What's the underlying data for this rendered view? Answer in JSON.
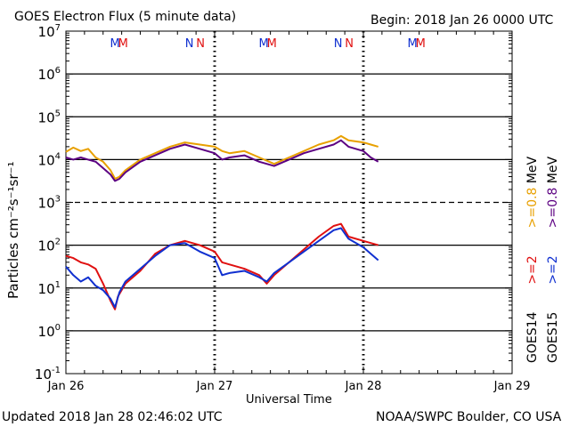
{
  "header": {
    "title": "GOES Electron Flux (5 minute data)",
    "begin": "Begin: 2018 Jan 26 0000 UTC"
  },
  "footer": {
    "updated": "Updated 2018 Jan 28 02:46:02 UTC",
    "credit": "NOAA/SWPC Boulder, CO USA"
  },
  "colors": {
    "goes14_high": "#e8a000",
    "goes15_high": "#5c0082",
    "goes14_low": "#e01010",
    "goes15_low": "#1030d0",
    "marker_M_blue": "#1030d0",
    "marker_M_red": "#e01010"
  },
  "chart_data": {
    "type": "line",
    "title": "GOES Electron Flux (5 minute data)",
    "xlabel": "Universal Time",
    "ylabel": "Particles cm⁻²s⁻¹sr⁻¹",
    "x_unit": "days since 2018 Jan 26 0000 UTC",
    "xlim": [
      0,
      3
    ],
    "ylim_log10": [
      -1,
      7
    ],
    "x_ticks": [
      {
        "x": 0,
        "label": "Jan 26"
      },
      {
        "x": 1,
        "label": "Jan 27"
      },
      {
        "x": 2,
        "label": "Jan 28"
      },
      {
        "x": 3,
        "label": "Jan 29"
      }
    ],
    "y_ticks": [
      {
        "base": "10",
        "exp": "7"
      },
      {
        "base": "10",
        "exp": "6"
      },
      {
        "base": "10",
        "exp": "5"
      },
      {
        "base": "10",
        "exp": "4"
      },
      {
        "base": "10",
        "exp": "3"
      },
      {
        "base": "10",
        "exp": "2"
      },
      {
        "base": "10",
        "exp": "1"
      },
      {
        "base": "10",
        "exp": "0"
      },
      {
        "base": "10",
        "exp": "-1"
      }
    ],
    "threshold_log10": 3,
    "gridlines_log10": [
      6,
      5,
      4,
      2,
      1,
      0
    ],
    "dotted_day_lines": [
      1,
      2
    ],
    "markers": [
      {
        "x": 0.33,
        "letter": "M",
        "color": "#1030d0"
      },
      {
        "x": 0.385,
        "letter": "M",
        "color": "#e01010"
      },
      {
        "x": 0.83,
        "letter": "N",
        "color": "#1030d0"
      },
      {
        "x": 0.905,
        "letter": "N",
        "color": "#e01010"
      },
      {
        "x": 1.33,
        "letter": "M",
        "color": "#1030d0"
      },
      {
        "x": 1.385,
        "letter": "M",
        "color": "#e01010"
      },
      {
        "x": 1.83,
        "letter": "N",
        "color": "#1030d0"
      },
      {
        "x": 1.905,
        "letter": "N",
        "color": "#e01010"
      },
      {
        "x": 2.33,
        "letter": "M",
        "color": "#1030d0"
      },
      {
        "x": 2.385,
        "letter": "M",
        "color": "#e01010"
      }
    ],
    "legend": {
      "groups": [
        {
          "sat": "GOES14",
          "low": "&gt;=2",
          "high": "&gt;=0.8 MeV"
        },
        {
          "sat": "GOES15",
          "low": "&gt;=2",
          "high": "&gt;=0.8 MeV"
        }
      ],
      "entries": [
        {
          "sat": "GOES14",
          "low_label": ">=2",
          "high_label": ">=0.8",
          "unit": "MeV"
        },
        {
          "sat": "GOES15",
          "low_label": ">=2",
          "high_label": ">=0.8",
          "unit": "MeV"
        }
      ]
    },
    "series": [
      {
        "name": "GOES14 >=0.8 MeV",
        "color": "#e8a000",
        "points": [
          [
            0,
            4.18
          ],
          [
            0.05,
            4.28
          ],
          [
            0.1,
            4.2
          ],
          [
            0.15,
            4.25
          ],
          [
            0.2,
            4.05
          ],
          [
            0.25,
            3.95
          ],
          [
            0.3,
            3.75
          ],
          [
            0.33,
            3.55
          ],
          [
            0.36,
            3.6
          ],
          [
            0.4,
            3.75
          ],
          [
            0.5,
            4.0
          ],
          [
            0.6,
            4.15
          ],
          [
            0.7,
            4.3
          ],
          [
            0.8,
            4.4
          ],
          [
            0.9,
            4.35
          ],
          [
            1.0,
            4.3
          ],
          [
            1.05,
            4.2
          ],
          [
            1.1,
            4.15
          ],
          [
            1.2,
            4.2
          ],
          [
            1.3,
            4.05
          ],
          [
            1.4,
            3.9
          ],
          [
            1.5,
            4.05
          ],
          [
            1.6,
            4.2
          ],
          [
            1.7,
            4.35
          ],
          [
            1.8,
            4.45
          ],
          [
            1.85,
            4.55
          ],
          [
            1.9,
            4.45
          ],
          [
            2.0,
            4.4
          ],
          [
            2.05,
            4.35
          ],
          [
            2.1,
            4.3
          ]
        ]
      },
      {
        "name": "GOES15 >=0.8 MeV",
        "color": "#5c0082",
        "points": [
          [
            0,
            4.05
          ],
          [
            0.05,
            4.0
          ],
          [
            0.1,
            4.05
          ],
          [
            0.15,
            4.0
          ],
          [
            0.2,
            3.95
          ],
          [
            0.25,
            3.8
          ],
          [
            0.3,
            3.65
          ],
          [
            0.33,
            3.5
          ],
          [
            0.36,
            3.55
          ],
          [
            0.4,
            3.7
          ],
          [
            0.5,
            3.95
          ],
          [
            0.6,
            4.1
          ],
          [
            0.7,
            4.25
          ],
          [
            0.8,
            4.35
          ],
          [
            0.9,
            4.25
          ],
          [
            1.0,
            4.15
          ],
          [
            1.05,
            4.0
          ],
          [
            1.1,
            4.05
          ],
          [
            1.2,
            4.1
          ],
          [
            1.3,
            3.95
          ],
          [
            1.4,
            3.85
          ],
          [
            1.5,
            4.0
          ],
          [
            1.6,
            4.15
          ],
          [
            1.7,
            4.25
          ],
          [
            1.8,
            4.35
          ],
          [
            1.85,
            4.45
          ],
          [
            1.9,
            4.3
          ],
          [
            2.0,
            4.2
          ],
          [
            2.05,
            4.05
          ],
          [
            2.1,
            3.95
          ]
        ]
      },
      {
        "name": "GOES14 >=2 MeV",
        "color": "#e01010",
        "points": [
          [
            0,
            1.75
          ],
          [
            0.05,
            1.7
          ],
          [
            0.1,
            1.6
          ],
          [
            0.15,
            1.55
          ],
          [
            0.2,
            1.45
          ],
          [
            0.25,
            1.1
          ],
          [
            0.3,
            0.7
          ],
          [
            0.33,
            0.5
          ],
          [
            0.35,
            0.8
          ],
          [
            0.4,
            1.1
          ],
          [
            0.5,
            1.4
          ],
          [
            0.6,
            1.8
          ],
          [
            0.7,
            2.0
          ],
          [
            0.8,
            2.1
          ],
          [
            0.9,
            2.0
          ],
          [
            1.0,
            1.85
          ],
          [
            1.05,
            1.6
          ],
          [
            1.1,
            1.55
          ],
          [
            1.2,
            1.45
          ],
          [
            1.3,
            1.3
          ],
          [
            1.35,
            1.1
          ],
          [
            1.4,
            1.3
          ],
          [
            1.5,
            1.6
          ],
          [
            1.6,
            1.9
          ],
          [
            1.7,
            2.2
          ],
          [
            1.8,
            2.45
          ],
          [
            1.85,
            2.5
          ],
          [
            1.9,
            2.2
          ],
          [
            2.0,
            2.1
          ],
          [
            2.05,
            2.05
          ],
          [
            2.1,
            2.0
          ]
        ]
      },
      {
        "name": "GOES15 >=2 MeV",
        "color": "#1030d0",
        "points": [
          [
            0,
            1.5
          ],
          [
            0.05,
            1.3
          ],
          [
            0.1,
            1.15
          ],
          [
            0.15,
            1.25
          ],
          [
            0.2,
            1.05
          ],
          [
            0.25,
            0.95
          ],
          [
            0.3,
            0.75
          ],
          [
            0.33,
            0.55
          ],
          [
            0.36,
            0.9
          ],
          [
            0.4,
            1.15
          ],
          [
            0.5,
            1.45
          ],
          [
            0.6,
            1.75
          ],
          [
            0.7,
            2.0
          ],
          [
            0.8,
            2.05
          ],
          [
            0.9,
            1.85
          ],
          [
            1.0,
            1.7
          ],
          [
            1.05,
            1.3
          ],
          [
            1.1,
            1.35
          ],
          [
            1.2,
            1.4
          ],
          [
            1.3,
            1.25
          ],
          [
            1.35,
            1.15
          ],
          [
            1.4,
            1.35
          ],
          [
            1.5,
            1.6
          ],
          [
            1.6,
            1.85
          ],
          [
            1.7,
            2.1
          ],
          [
            1.8,
            2.35
          ],
          [
            1.85,
            2.4
          ],
          [
            1.9,
            2.15
          ],
          [
            2.0,
            1.95
          ],
          [
            2.05,
            1.8
          ],
          [
            2.1,
            1.65
          ]
        ]
      }
    ]
  }
}
